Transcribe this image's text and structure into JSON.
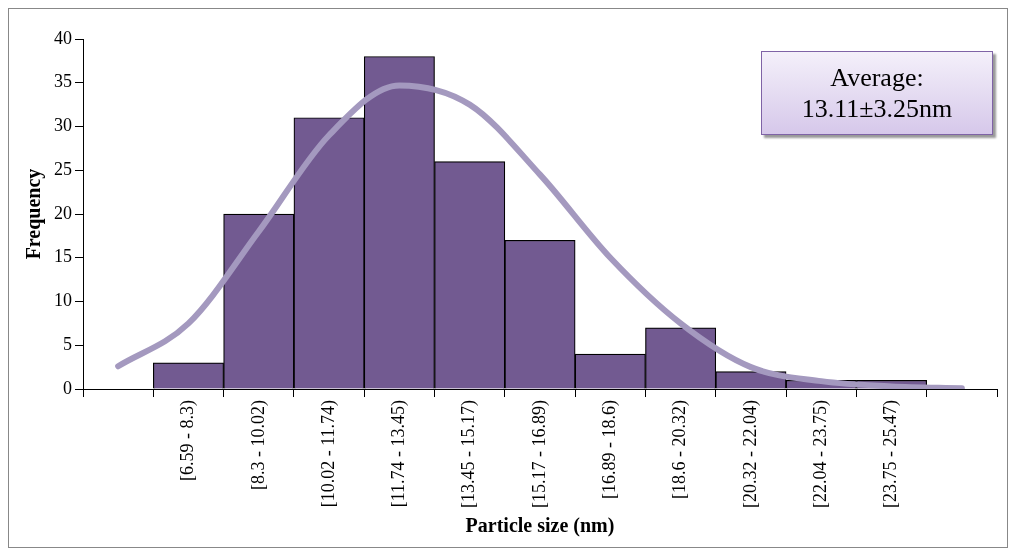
{
  "chart_data": {
    "type": "bar",
    "xlabel": "Particle size (nm)",
    "ylabel": "Frequency",
    "categories": [
      null,
      "[6.59 - 8.3)",
      "[8.3 - 10.02)",
      "[10.02 - 11.74)",
      "[11.74 - 13.45)",
      "[13.45 - 15.17)",
      "[15.17 - 16.89)",
      "[16.89 - 18.6)",
      "[18.6 - 20.32)",
      "[20.32 - 22.04)",
      "[22.04 - 23.75)",
      "[23.75 - 25.47)",
      null
    ],
    "series": [
      {
        "color": "#725a91",
        "values": [
          null,
          3,
          20,
          31,
          38,
          26,
          17,
          4,
          7,
          2,
          1,
          1,
          null
        ]
      },
      {
        "type": "line",
        "color": "#a499bf",
        "marker": "none",
        "values": [
          2.6,
          7.5,
          18,
          29,
          34.7,
          32.5,
          24.5,
          15,
          7.5,
          2.5,
          0.9,
          0.3,
          0.1
        ]
      }
    ],
    "ylim": [
      0,
      40
    ],
    "yticks": [
      0,
      5,
      10,
      15,
      20,
      25,
      30,
      35,
      40
    ],
    "grid": false,
    "legend": false,
    "annotations": [
      "Average:\n13.11±3.25nm"
    ]
  }
}
